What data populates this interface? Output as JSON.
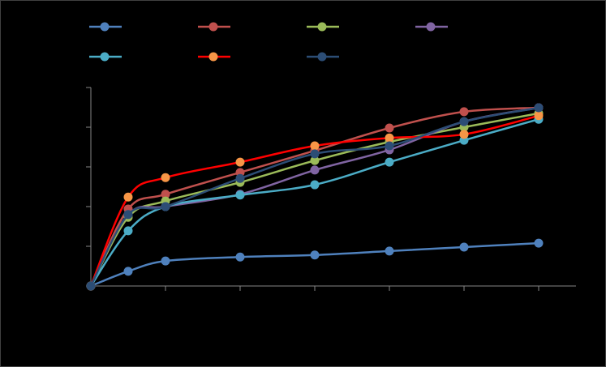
{
  "chart_data": {
    "type": "line",
    "x": [
      0,
      0.5,
      1,
      2,
      3,
      4,
      5,
      6
    ],
    "xlim": [
      0,
      6.5
    ],
    "xticks": [
      0,
      1,
      2,
      3,
      4,
      5,
      6
    ],
    "ylim": [
      0,
      5
    ],
    "yticks": [
      0,
      1,
      2,
      3,
      4,
      5
    ],
    "smooth": true,
    "series": [
      {
        "color": "#4f81bd",
        "marker_color": "#4f81bd",
        "values": [
          0,
          0.37,
          0.63,
          0.73,
          0.78,
          0.88,
          0.98,
          1.08
        ]
      },
      {
        "color": "#c0504d",
        "marker_color": "#c0504d",
        "values": [
          0,
          1.94,
          2.31,
          2.86,
          3.41,
          3.98,
          4.39,
          4.49
        ]
      },
      {
        "color": "#9bbb59",
        "marker_color": "#9bbb59",
        "values": [
          0,
          1.73,
          2.14,
          2.61,
          3.16,
          3.63,
          4.0,
          4.35
        ]
      },
      {
        "color": "#8064a2",
        "marker_color": "#8064a2",
        "values": [
          0,
          1.8,
          2.0,
          2.31,
          2.92,
          3.43,
          4.14,
          4.49
        ]
      },
      {
        "color": "#4bacc6",
        "marker_color": "#4bacc6",
        "values": [
          0,
          1.39,
          2.0,
          2.29,
          2.55,
          3.12,
          3.67,
          4.2
        ]
      },
      {
        "color": "#ff0000",
        "marker_color": "#f79646",
        "values": [
          0,
          2.24,
          2.73,
          3.12,
          3.53,
          3.73,
          3.82,
          4.29
        ]
      },
      {
        "color": "#2c4d75",
        "marker_color": "#2c4d75",
        "values": [
          0,
          1.8,
          2.0,
          2.71,
          3.33,
          3.53,
          4.14,
          4.49
        ]
      }
    ]
  }
}
